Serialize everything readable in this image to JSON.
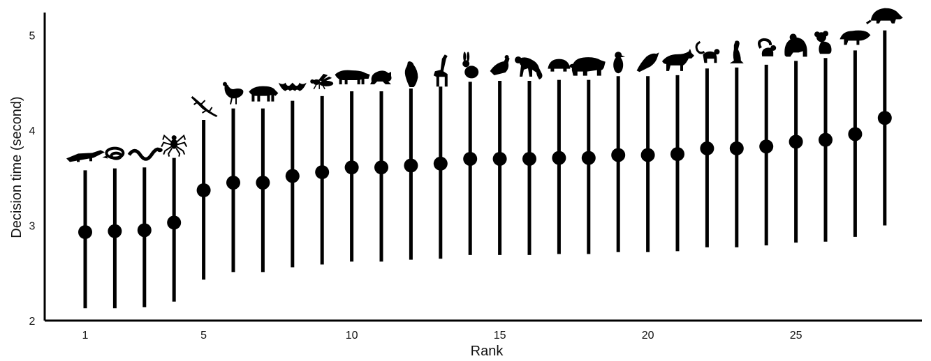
{
  "chart_data": {
    "type": "scatter",
    "xlabel": "Rank",
    "ylabel": "Decision time (second)",
    "xlim": [
      0,
      28.8
    ],
    "ylim": [
      2,
      5.2
    ],
    "x_ticks": [
      1,
      5,
      10,
      15,
      20,
      25
    ],
    "y_ticks": [
      2,
      3,
      4,
      5
    ],
    "grid": false,
    "points": [
      {
        "rank": 1,
        "mean": 2.93,
        "low": 2.13,
        "high": 3.58,
        "icon": "crocodile-icon"
      },
      {
        "rank": 2,
        "mean": 2.94,
        "low": 2.13,
        "high": 3.6,
        "icon": "snake-coiled-icon"
      },
      {
        "rank": 3,
        "mean": 2.95,
        "low": 2.14,
        "high": 3.61,
        "icon": "snake-icon"
      },
      {
        "rank": 4,
        "mean": 3.03,
        "low": 2.2,
        "high": 3.71,
        "icon": "spider-icon"
      },
      {
        "rank": 5,
        "mean": 3.37,
        "low": 2.43,
        "high": 4.11,
        "icon": "lizard-icon"
      },
      {
        "rank": 6,
        "mean": 3.45,
        "low": 2.51,
        "high": 4.23,
        "icon": "turkey-icon"
      },
      {
        "rank": 7,
        "mean": 3.45,
        "low": 2.51,
        "high": 4.23,
        "icon": "hyena-icon"
      },
      {
        "rank": 8,
        "mean": 3.52,
        "low": 2.56,
        "high": 4.31,
        "icon": "bat-icon"
      },
      {
        "rank": 9,
        "mean": 3.56,
        "low": 2.59,
        "high": 4.36,
        "icon": "wasp-icon"
      },
      {
        "rank": 10,
        "mean": 3.61,
        "low": 2.62,
        "high": 4.41,
        "icon": "tiger-icon"
      },
      {
        "rank": 11,
        "mean": 3.61,
        "low": 2.62,
        "high": 4.41,
        "icon": "frog-icon"
      },
      {
        "rank": 12,
        "mean": 3.63,
        "low": 2.64,
        "high": 4.44,
        "icon": "vulture-icon"
      },
      {
        "rank": 13,
        "mean": 3.65,
        "low": 2.65,
        "high": 4.46,
        "icon": "giraffe-icon"
      },
      {
        "rank": 14,
        "mean": 3.7,
        "low": 2.69,
        "high": 4.51,
        "icon": "rabbit-icon"
      },
      {
        "rank": 15,
        "mean": 3.7,
        "low": 2.69,
        "high": 4.52,
        "icon": "pigeon-icon"
      },
      {
        "rank": 16,
        "mean": 3.7,
        "low": 2.69,
        "high": 4.52,
        "icon": "monkey-icon"
      },
      {
        "rank": 17,
        "mean": 3.71,
        "low": 2.7,
        "high": 4.53,
        "icon": "turtle-icon"
      },
      {
        "rank": 18,
        "mean": 3.71,
        "low": 2.7,
        "high": 4.53,
        "icon": "bear-icon"
      },
      {
        "rank": 19,
        "mean": 3.74,
        "low": 2.72,
        "high": 4.57,
        "icon": "penguin-icon"
      },
      {
        "rank": 20,
        "mean": 3.74,
        "low": 2.72,
        "high": 4.57,
        "icon": "songbird-icon"
      },
      {
        "rank": 21,
        "mean": 3.75,
        "low": 2.73,
        "high": 4.58,
        "icon": "wolf-icon"
      },
      {
        "rank": 22,
        "mean": 3.81,
        "low": 2.77,
        "high": 4.65,
        "icon": "lemur-icon"
      },
      {
        "rank": 23,
        "mean": 3.81,
        "low": 2.77,
        "high": 4.66,
        "icon": "meerkat-icon"
      },
      {
        "rank": 24,
        "mean": 3.83,
        "low": 2.79,
        "high": 4.69,
        "icon": "squirrel-icon"
      },
      {
        "rank": 25,
        "mean": 3.88,
        "low": 2.82,
        "high": 4.73,
        "icon": "gorilla-icon"
      },
      {
        "rank": 26,
        "mean": 3.9,
        "low": 2.83,
        "high": 4.76,
        "icon": "koala-icon"
      },
      {
        "rank": 27,
        "mean": 3.96,
        "low": 2.88,
        "high": 4.84,
        "icon": "raccoon-icon"
      },
      {
        "rank": 28,
        "mean": 4.13,
        "low": 3.0,
        "high": 5.05,
        "icon": "armadillo-icon"
      }
    ]
  }
}
